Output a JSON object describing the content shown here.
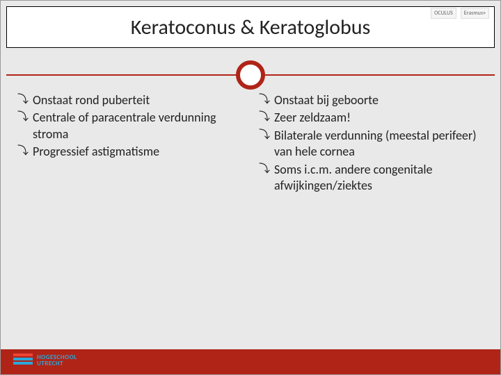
{
  "colors": {
    "accent": "#b02418",
    "slide_bg": "#e9e9e9",
    "header_bg": "#ffffff",
    "text": "#222222",
    "hu_blue": "#2aa8d8",
    "hu_red": "#e44333"
  },
  "title": "Keratoconus & Keratoglobus",
  "top_logos": [
    "OCULUS",
    "Erasmus+"
  ],
  "left_col": [
    "Onstaat rond puberteit",
    "Centrale of paracentrale verdunning stroma",
    "Progressief astigmatisme"
  ],
  "right_col": [
    "Onstaat bij geboorte",
    "Zeer zeldzaam!",
    "Bilaterale verdunning (meestal perifeer) van hele cornea",
    "Soms i.c.m. andere congenitale afwijkingen/ziektes"
  ],
  "hu_logo": {
    "line1": "HOGESCHOOL",
    "line2": "UTRECHT"
  },
  "bullet_glyph": "⤵"
}
